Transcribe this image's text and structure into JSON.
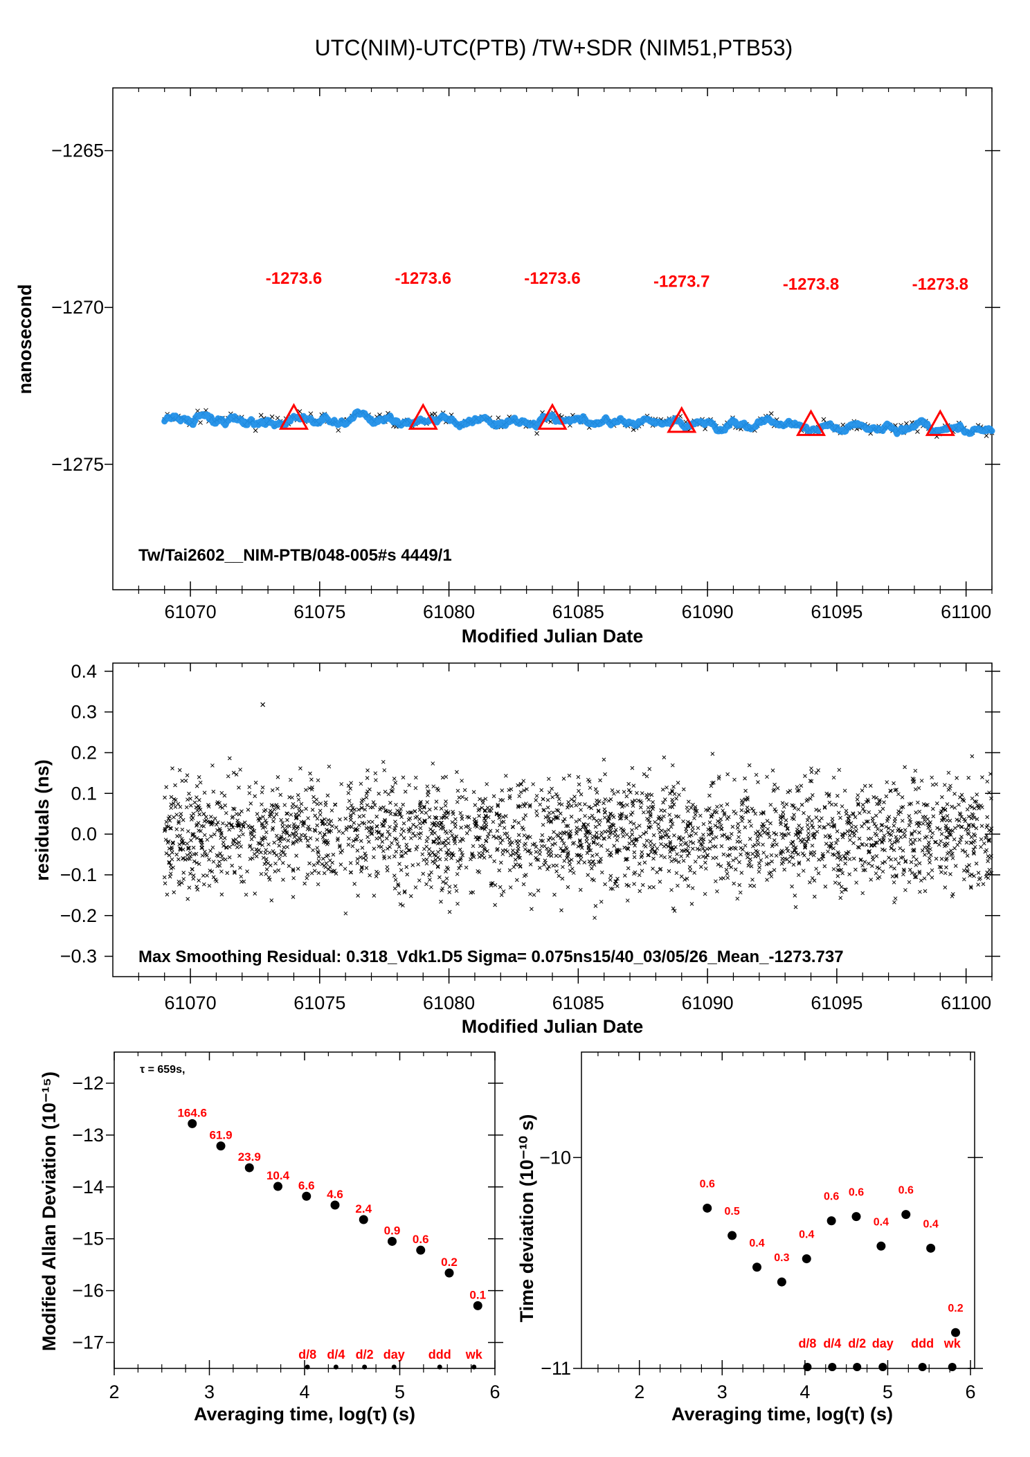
{
  "chart_data": [
    {
      "type": "scatter",
      "title": "UTC(NIM)-UTC(PTB)  /TW+SDR  (NIM51,PTB53)",
      "xlabel": "Modified Julian Date",
      "ylabel": "nanosecond",
      "xlim": [
        61067,
        61101
      ],
      "ylim": [
        -1279,
        -1263
      ],
      "xticks": [
        "61070",
        "61075",
        "61080",
        "61085",
        "61090",
        "61095",
        "61100"
      ],
      "yticks": [
        "−1265",
        "−1270",
        "−1275"
      ],
      "annotation": "Tw/Tai2602__NIM-PTB/048-005#s  4449/1",
      "data_range": [
        61069,
        61101
      ],
      "trend": {
        "x": [
          61069,
          61074,
          61079,
          61084,
          61089,
          61094,
          61099,
          61101
        ],
        "y": [
          -1273.6,
          -1273.6,
          -1273.6,
          -1273.6,
          -1273.7,
          -1273.8,
          -1273.8,
          -1273.9
        ]
      },
      "mean_markers": [
        {
          "x": 61074,
          "y": -1273.6,
          "label": "-1273.6"
        },
        {
          "x": 61079,
          "y": -1273.6,
          "label": "-1273.6"
        },
        {
          "x": 61084,
          "y": -1273.6,
          "label": "-1273.6"
        },
        {
          "x": 61089,
          "y": -1273.7,
          "label": "-1273.7"
        },
        {
          "x": 61094,
          "y": -1273.8,
          "label": "-1273.8"
        },
        {
          "x": 61099,
          "y": -1273.8,
          "label": "-1273.8"
        }
      ],
      "colors": {
        "series": "#1f8fe8",
        "markers": "#ff0000"
      }
    },
    {
      "type": "scatter",
      "xlabel": "Modified Julian Date",
      "ylabel": "residuals (ns)",
      "xlim": [
        61067,
        61101
      ],
      "ylim": [
        -0.35,
        0.42
      ],
      "xticks": [
        "61070",
        "61075",
        "61080",
        "61085",
        "61090",
        "61095",
        "61100"
      ],
      "yticks": [
        "0.4",
        "0.3",
        "0.2",
        "0.1",
        "0.0",
        "−0.1",
        "−0.2",
        "−0.3"
      ],
      "annotation": "Max Smoothing Residual: 0.318_Vdk1.D5  Sigma= 0.075ns15/40_03/05/26_Mean_-1273.737",
      "residual_sigma": 0.075,
      "max_residual": {
        "x": 61072.8,
        "y": 0.318
      }
    },
    {
      "type": "scatter",
      "xlabel": "Averaging time, log(τ) (s)",
      "ylabel": "Modified Allan Deviation (10⁻¹⁵)",
      "xlim": [
        2,
        6
      ],
      "ylim": [
        -17.5,
        -11.4
      ],
      "xticks": [
        "2",
        "3",
        "4",
        "5",
        "6"
      ],
      "yticks": [
        "−12",
        "−13",
        "−14",
        "−15",
        "−16",
        "−17"
      ],
      "note": "τ = 659s,",
      "points": [
        {
          "x": 2.82,
          "y": -12.78,
          "label": "164.6"
        },
        {
          "x": 3.12,
          "y": -13.21,
          "label": "61.9"
        },
        {
          "x": 3.42,
          "y": -13.63,
          "label": "23.9"
        },
        {
          "x": 3.72,
          "y": -13.99,
          "label": "10.4"
        },
        {
          "x": 4.02,
          "y": -14.18,
          "label": "6.6"
        },
        {
          "x": 4.32,
          "y": -14.35,
          "label": "4.6"
        },
        {
          "x": 4.62,
          "y": -14.63,
          "label": "2.4"
        },
        {
          "x": 4.92,
          "y": -15.05,
          "label": "0.9"
        },
        {
          "x": 5.22,
          "y": -15.22,
          "label": "0.6"
        },
        {
          "x": 5.52,
          "y": -15.66,
          "label": "0.2"
        },
        {
          "x": 5.82,
          "y": -16.29,
          "label": "0.1"
        }
      ],
      "time_markers": [
        {
          "x": 4.03,
          "label": "d/8"
        },
        {
          "x": 4.33,
          "label": "d/4"
        },
        {
          "x": 4.63,
          "label": "d/2"
        },
        {
          "x": 4.94,
          "label": "day"
        },
        {
          "x": 5.42,
          "label": "ddd"
        },
        {
          "x": 5.78,
          "label": "wk"
        }
      ]
    },
    {
      "type": "scatter",
      "xlabel": "Averaging time, log(τ) (s)",
      "ylabel": "Time deviation (10⁻¹⁰ s)",
      "xlim": [
        1.3,
        6.05
      ],
      "ylim": [
        -11,
        -9.5
      ],
      "xticks": [
        "2",
        "3",
        "4",
        "5",
        "6"
      ],
      "yticks": [
        "−10",
        "−11"
      ],
      "points": [
        {
          "x": 2.82,
          "y": -10.24,
          "label": "0.6"
        },
        {
          "x": 3.12,
          "y": -10.37,
          "label": "0.5"
        },
        {
          "x": 3.42,
          "y": -10.52,
          "label": "0.4"
        },
        {
          "x": 3.72,
          "y": -10.59,
          "label": "0.3"
        },
        {
          "x": 4.02,
          "y": -10.48,
          "label": "0.4"
        },
        {
          "x": 4.32,
          "y": -10.3,
          "label": "0.6"
        },
        {
          "x": 4.62,
          "y": -10.28,
          "label": "0.6"
        },
        {
          "x": 4.92,
          "y": -10.42,
          "label": "0.4"
        },
        {
          "x": 5.22,
          "y": -10.27,
          "label": "0.6"
        },
        {
          "x": 5.52,
          "y": -10.43,
          "label": "0.4"
        },
        {
          "x": 5.82,
          "y": -10.83,
          "label": "0.2"
        }
      ],
      "time_markers": [
        {
          "x": 4.03,
          "label": "d/8"
        },
        {
          "x": 4.33,
          "label": "d/4"
        },
        {
          "x": 4.63,
          "label": "d/2"
        },
        {
          "x": 4.94,
          "label": "day"
        },
        {
          "x": 5.42,
          "label": "ddd"
        },
        {
          "x": 5.78,
          "label": "wk"
        }
      ]
    }
  ]
}
